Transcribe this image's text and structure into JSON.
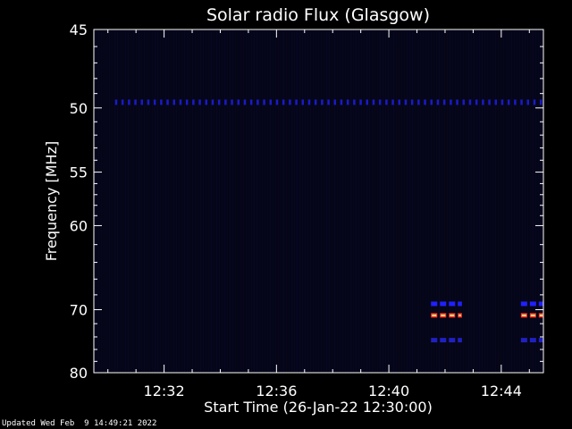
{
  "chart_data": {
    "type": "heatmap",
    "title": "Solar radio Flux (Glasgow)",
    "xlabel": "Start Time (26-Jan-22 12:30:00)",
    "ylabel": "Frequency [MHz]",
    "x_ticks": [
      "12:32",
      "12:36",
      "12:40",
      "12:44"
    ],
    "x_tick_minutes": [
      2,
      6,
      10,
      14
    ],
    "xlim_minutes": [
      -0.5,
      15.5
    ],
    "y_ticks": [
      45,
      50,
      55,
      60,
      70,
      80
    ],
    "y_scale": "reciprocal",
    "ylim": [
      45,
      80
    ],
    "background_color": "#000000",
    "plot_background_color": "#05051a",
    "features": [
      {
        "kind": "horizontal_dotted_band",
        "freq_mhz": 49.6,
        "t_start_min": 0.0,
        "t_end_min": 15.5,
        "color": "#1a1ac8"
      },
      {
        "kind": "burst",
        "freq_mhz": 69.2,
        "t_start_min": 11.5,
        "t_end_min": 12.6,
        "color": "#2020ff"
      },
      {
        "kind": "burst",
        "freq_mhz": 70.8,
        "t_start_min": 11.5,
        "t_end_min": 12.6,
        "color": "#ff3020"
      },
      {
        "kind": "burst",
        "freq_mhz": 74.5,
        "t_start_min": 11.5,
        "t_end_min": 12.6,
        "color": "#2020c0"
      },
      {
        "kind": "burst",
        "freq_mhz": 69.2,
        "t_start_min": 14.7,
        "t_end_min": 15.5,
        "color": "#2020ff"
      },
      {
        "kind": "burst",
        "freq_mhz": 70.8,
        "t_start_min": 14.7,
        "t_end_min": 15.5,
        "color": "#ff3020"
      },
      {
        "kind": "burst",
        "freq_mhz": 74.5,
        "t_start_min": 14.7,
        "t_end_min": 15.5,
        "color": "#2020c0"
      }
    ]
  },
  "footer": {
    "updated_text": "Updated Wed Feb  9 14:49:21 2022"
  }
}
